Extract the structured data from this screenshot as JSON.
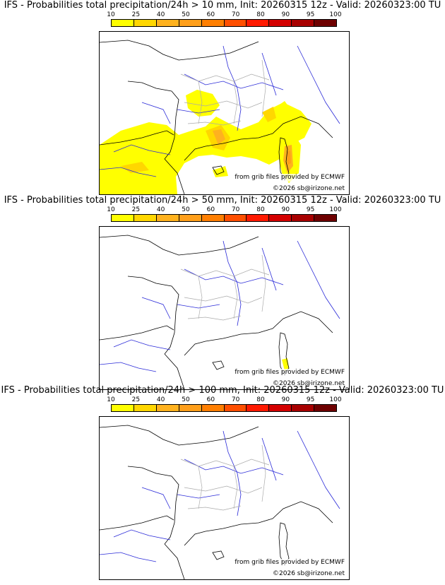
{
  "colorbar": {
    "ticks": [
      "10",
      "25",
      "40",
      "50",
      "60",
      "70",
      "80",
      "90",
      "95",
      "100"
    ],
    "colors": [
      "#ffff00",
      "#ffd700",
      "#ffb21e",
      "#ff9f1a",
      "#ff7f00",
      "#ff4f00",
      "#ff1a00",
      "#d40000",
      "#a80000",
      "#6e0000"
    ]
  },
  "panels": [
    {
      "title": "IFS - Probabilities total precipitation/24h > 10 mm, Init: 20260315 12z - Valid: 20260323:00 TU"
    },
    {
      "title": "IFS - Probabilities total precipitation/24h > 50 mm, Init: 20260315 12z - Valid: 20260323:00 TU"
    },
    {
      "title": "IFS - Probabilities total precipitation/24h > 100 mm, Init: 20260315 12z - Valid: 20260323:00 TU"
    }
  ],
  "credits": {
    "source": "from grib files provided by ECMWF",
    "copyright": "©2026 sb@irizone.net"
  },
  "colors": {
    "coast": "#000000",
    "rivers": "#2a2ad8",
    "borders": "#aaaaaa"
  }
}
